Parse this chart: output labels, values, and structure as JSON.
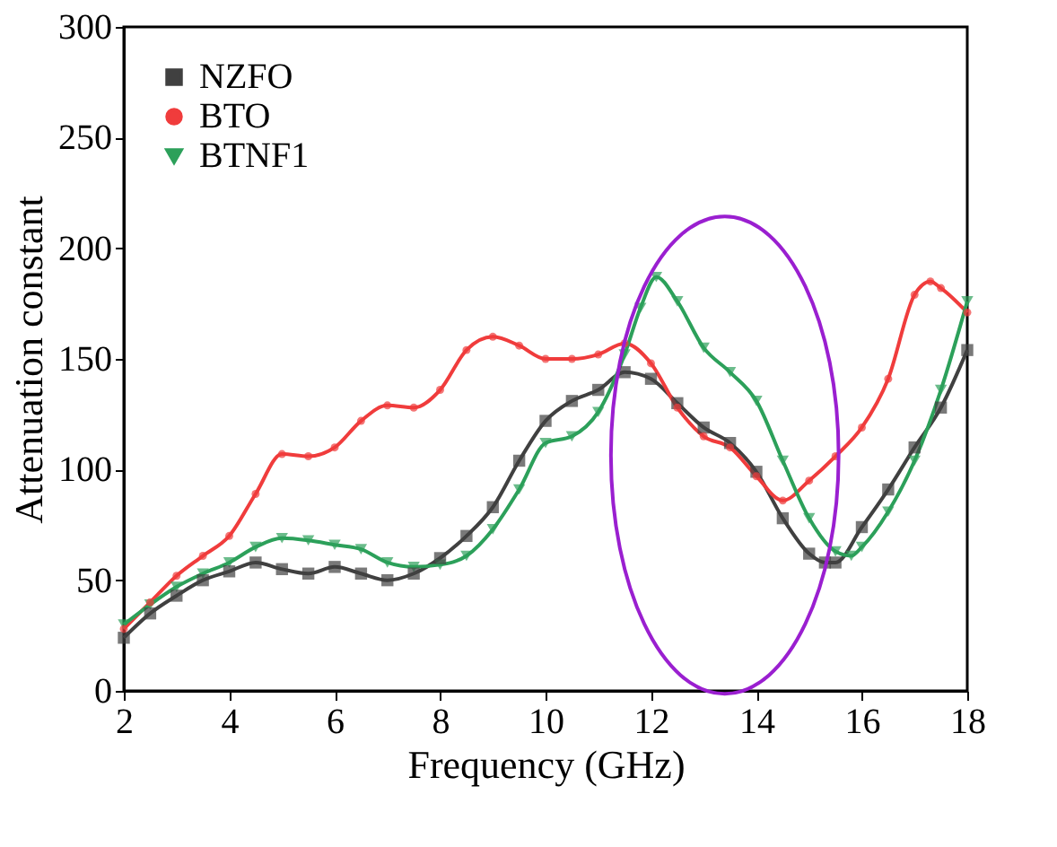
{
  "chart_data": {
    "type": "line",
    "xlabel": "Frequency (GHz)",
    "ylabel": "Attenuation constant",
    "xlim": [
      2,
      18
    ],
    "xticks": [
      2,
      4,
      6,
      8,
      10,
      12,
      14,
      16,
      18
    ],
    "ylim": [
      0,
      300
    ],
    "yticks": [
      0,
      50,
      100,
      150,
      200,
      250,
      300
    ],
    "grid": false,
    "legend": "top left",
    "series": [
      {
        "name": "NZFO",
        "color": "#404040",
        "marker": "square",
        "x": [
          2,
          2.5,
          3,
          3.5,
          4,
          4.5,
          5,
          5.5,
          6,
          6.5,
          7,
          7.5,
          8,
          8.5,
          9,
          9.5,
          10,
          10.5,
          11,
          11.5,
          12,
          12.5,
          13,
          13.5,
          14,
          14.5,
          15,
          15.3,
          15.5,
          16,
          16.5,
          17,
          17.5,
          18
        ],
        "values": [
          24,
          35,
          43,
          50,
          54,
          58,
          55,
          53,
          56,
          53,
          50,
          53,
          60,
          70,
          83,
          104,
          122,
          131,
          136,
          144,
          141,
          130,
          119,
          112,
          99,
          78,
          62,
          58,
          58,
          74,
          91,
          110,
          128,
          154
        ]
      },
      {
        "name": "BTO",
        "color": "#f03c3c",
        "marker": "circle",
        "x": [
          2,
          2.5,
          3,
          3.5,
          4,
          4.5,
          5,
          5.5,
          6,
          6.5,
          7,
          7.5,
          8,
          8.5,
          9,
          9.5,
          10,
          10.5,
          11,
          11.5,
          12,
          12.5,
          13,
          13.5,
          14,
          14.5,
          15,
          15.5,
          16,
          16.5,
          17,
          17.3,
          17.5,
          18
        ],
        "values": [
          28,
          40,
          52,
          61,
          70,
          89,
          107,
          106,
          110,
          122,
          129,
          128,
          136,
          154,
          160,
          156,
          150,
          150,
          152,
          157,
          148,
          128,
          115,
          110,
          97,
          86,
          95,
          106,
          119,
          141,
          179,
          185,
          182,
          171
        ]
      },
      {
        "name": "BTNF1",
        "color": "#2ca05a",
        "marker": "triangle-down",
        "x": [
          2,
          2.5,
          3,
          3.5,
          4,
          4.5,
          5,
          5.5,
          6,
          6.5,
          7,
          7.5,
          8,
          8.5,
          9,
          9.5,
          10,
          10.5,
          11,
          11.5,
          11.8,
          12.1,
          12.5,
          13,
          13.5,
          14,
          14.5,
          15,
          15.5,
          15.8,
          16,
          16.5,
          17,
          17.5,
          18
        ],
        "values": [
          30,
          39,
          47,
          53,
          58,
          65,
          69,
          68,
          66,
          64,
          58,
          56,
          57,
          61,
          73,
          91,
          112,
          115,
          126,
          152,
          173,
          187,
          176,
          155,
          144,
          131,
          104,
          78,
          63,
          61,
          65,
          81,
          104,
          136,
          176
        ]
      }
    ]
  }
}
